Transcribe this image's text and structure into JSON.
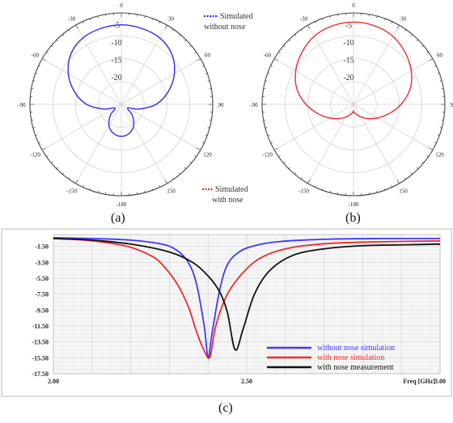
{
  "captions": {
    "a": "(a)",
    "b": "(b)",
    "c": "(c)"
  },
  "chart_data": [
    {
      "type": "polar",
      "panel": "(a)",
      "angle_ticks": [
        "0",
        "30",
        "60",
        "90",
        "120",
        "150",
        "-180",
        "-150",
        "-120",
        "-90",
        "-60",
        "-30"
      ],
      "radial_ticks": [
        "-5",
        "-10",
        "-15",
        "-20"
      ],
      "series": [
        {
          "name": "Simulated without nose",
          "color": "#2b2bff",
          "angles_deg": [
            0,
            15,
            30,
            45,
            60,
            75,
            90,
            105,
            120,
            135,
            150,
            165,
            180,
            195,
            210,
            225,
            240,
            255,
            270,
            285,
            300,
            315,
            330,
            345,
            360
          ],
          "radius_frac": [
            0.87,
            0.86,
            0.84,
            0.78,
            0.67,
            0.53,
            0.38,
            0.2,
            0.08,
            0.17,
            0.27,
            0.33,
            0.35,
            0.33,
            0.27,
            0.17,
            0.08,
            0.2,
            0.38,
            0.53,
            0.67,
            0.78,
            0.84,
            0.86,
            0.87
          ]
        }
      ],
      "legend": [
        "Simulated without nose"
      ]
    },
    {
      "type": "polar",
      "panel": "(b)",
      "angle_ticks": [
        "0",
        "30",
        "60",
        "90",
        "120",
        "150",
        "-180",
        "-150",
        "-120",
        "-90",
        "-60",
        "-30"
      ],
      "radial_ticks": [
        "-5",
        "-10",
        "-15",
        "-20"
      ],
      "series": [
        {
          "name": "Simulated with nose",
          "color": "#ee2a2a",
          "angles_deg": [
            0,
            15,
            30,
            45,
            60,
            75,
            90,
            105,
            120,
            135,
            150,
            165,
            175,
            180,
            185,
            195,
            210,
            225,
            240,
            255,
            270,
            285,
            300,
            315,
            330,
            345,
            360
          ],
          "radius_frac": [
            0.9,
            0.89,
            0.86,
            0.8,
            0.73,
            0.64,
            0.52,
            0.4,
            0.3,
            0.22,
            0.16,
            0.11,
            0.09,
            0.07,
            0.09,
            0.11,
            0.16,
            0.22,
            0.3,
            0.4,
            0.52,
            0.64,
            0.73,
            0.8,
            0.86,
            0.89,
            0.9
          ]
        }
      ],
      "legend": [
        "Simulated with nose"
      ]
    },
    {
      "type": "line",
      "panel": "(c)",
      "xlabel": "Freq [GHz]",
      "xlim": [
        2.0,
        3.0
      ],
      "ylim": [
        -17.5,
        0
      ],
      "x_ticks": [
        "2.00",
        "2.50",
        "3.00"
      ],
      "y_ticks": [
        "-1.50",
        "-3.50",
        "-5.50",
        "-7.50",
        "-9.50",
        "-11.50",
        "-13.50",
        "-15.50",
        "-17.50"
      ],
      "grid": true,
      "legend_position": "bottom-right",
      "series": [
        {
          "name": "without nose simulation",
          "color": "#3b3bff",
          "x": [
            2.0,
            2.1,
            2.2,
            2.28,
            2.32,
            2.35,
            2.37,
            2.39,
            2.4,
            2.41,
            2.43,
            2.45,
            2.48,
            2.52,
            2.58,
            2.7,
            2.85,
            3.0
          ],
          "y": [
            -0.4,
            -0.5,
            -0.7,
            -1.2,
            -2.0,
            -3.6,
            -6.2,
            -11.5,
            -15.5,
            -12.5,
            -7.0,
            -3.8,
            -2.2,
            -1.4,
            -0.9,
            -0.6,
            -0.5,
            -0.5
          ]
        },
        {
          "name": "with nose simulation",
          "color": "#ee2a2a",
          "x": [
            2.0,
            2.08,
            2.15,
            2.2,
            2.25,
            2.28,
            2.32,
            2.35,
            2.37,
            2.39,
            2.405,
            2.42,
            2.45,
            2.5,
            2.55,
            2.62,
            2.72,
            2.85,
            3.0
          ],
          "y": [
            -0.5,
            -0.7,
            -1.1,
            -1.6,
            -2.6,
            -3.7,
            -6.2,
            -9.2,
            -12.2,
            -14.6,
            -15.4,
            -11.5,
            -7.5,
            -4.3,
            -2.6,
            -1.6,
            -1.1,
            -0.9,
            -0.8
          ]
        },
        {
          "name": "with nose measurement",
          "color": "#111111",
          "x": [
            2.0,
            2.1,
            2.2,
            2.3,
            2.36,
            2.4,
            2.43,
            2.45,
            2.47,
            2.49,
            2.52,
            2.56,
            2.62,
            2.7,
            2.8,
            2.9,
            3.0
          ],
          "y": [
            -0.5,
            -0.7,
            -1.2,
            -2.2,
            -3.5,
            -5.2,
            -7.2,
            -9.8,
            -14.5,
            -12.0,
            -7.5,
            -4.5,
            -2.6,
            -1.8,
            -1.4,
            -1.3,
            -1.2
          ]
        }
      ]
    }
  ]
}
